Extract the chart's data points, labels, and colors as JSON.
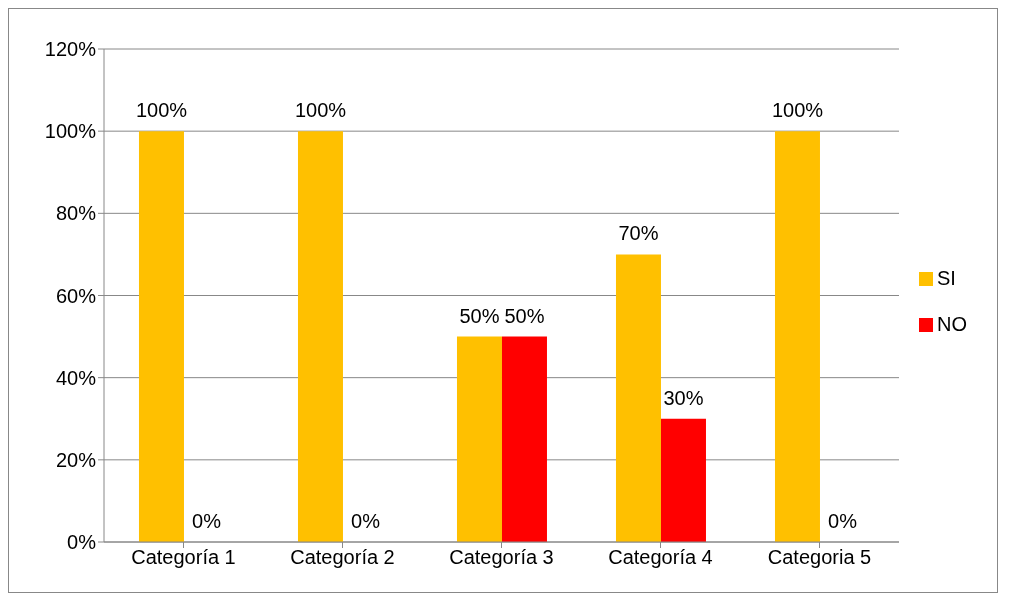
{
  "chart_data": {
    "type": "bar",
    "categories": [
      "Categoría 1",
      "Categoría 2",
      "Categoría 3",
      "Categoría 4",
      "Categoria 5"
    ],
    "series": [
      {
        "name": "SI",
        "color": "#ffc000",
        "values": [
          100,
          100,
          50,
          70,
          100
        ],
        "value_labels": [
          "100%",
          "100%",
          "50%",
          "70%",
          "100%"
        ]
      },
      {
        "name": "NO",
        "color": "#ff0000",
        "values": [
          0,
          0,
          50,
          30,
          0
        ],
        "value_labels": [
          "0%",
          "0%",
          "50%",
          "30%",
          "0%"
        ]
      }
    ],
    "ylim": [
      0,
      120
    ],
    "yticks": [
      {
        "value": 0,
        "label": "0%"
      },
      {
        "value": 20,
        "label": "20%"
      },
      {
        "value": 40,
        "label": "40%"
      },
      {
        "value": 60,
        "label": "60%"
      },
      {
        "value": 80,
        "label": "80%"
      },
      {
        "value": 100,
        "label": "100%"
      },
      {
        "value": 120,
        "label": "120%"
      }
    ],
    "grid": "y",
    "legend": "right"
  }
}
